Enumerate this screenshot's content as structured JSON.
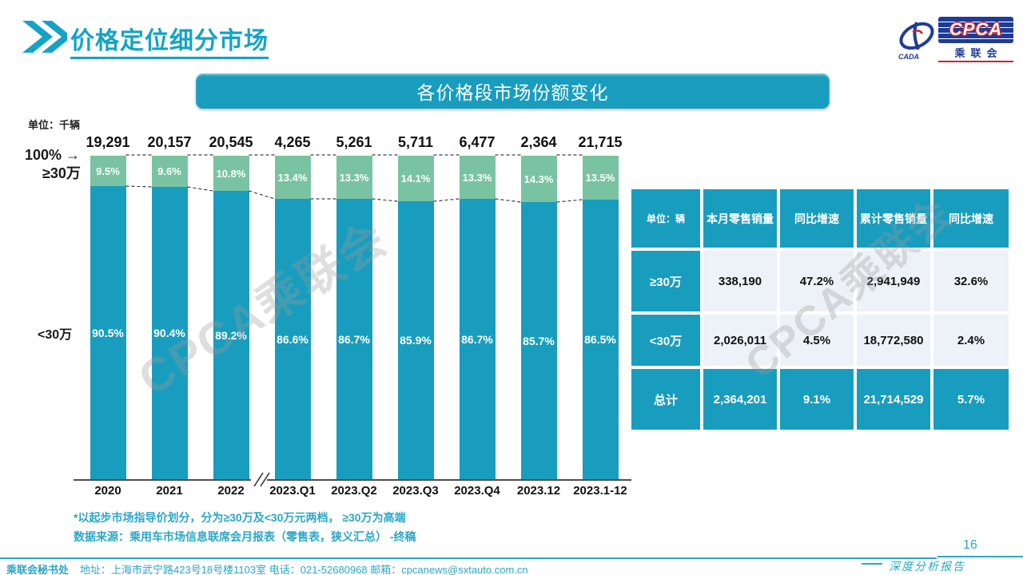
{
  "slide": {
    "title": "价格定位细分市场",
    "page_number": "16",
    "report_label": "深度分析报告",
    "watermark": "CPCA乘联会"
  },
  "logo": {
    "cpca": "CPCA",
    "cpca_cn": "乘联会",
    "cada": "CADA"
  },
  "chart": {
    "unit_label": "单位：千辆",
    "y_top_label": "100%",
    "arrow": "→"
  },
  "chart_data": [
    {
      "type": "bar",
      "stacked": true,
      "title": "各价格段市场份额变化",
      "unit": "千辆",
      "categories": [
        "2020",
        "2021",
        "2022",
        "2023.Q1",
        "2023.Q2",
        "2023.Q3",
        "2023.Q4",
        "2023.12",
        "2023.1-12"
      ],
      "totals": [
        19291,
        20157,
        20545,
        4265,
        5261,
        5711,
        6477,
        2364,
        21715
      ],
      "series": [
        {
          "name": "≥30万",
          "color": "#79c3a2",
          "values": [
            9.5,
            9.6,
            10.8,
            13.4,
            13.3,
            14.1,
            13.3,
            14.3,
            13.5
          ]
        },
        {
          "name": "<30万",
          "color": "#199dbe",
          "values": [
            90.5,
            90.4,
            89.2,
            86.6,
            86.7,
            85.9,
            86.7,
            85.7,
            86.5
          ]
        }
      ],
      "ylim": [
        0,
        100
      ],
      "value_format": "percent",
      "axis_break_after": "2022",
      "legend_position": "left-axis"
    },
    {
      "type": "table",
      "columns": [
        "单位：辆",
        "本月零售销量",
        "同比增速",
        "累计零售销量",
        "同比增速"
      ],
      "rows": [
        [
          "≥30万",
          "338,190",
          "47.2%",
          "2,941,949",
          "32.6%"
        ],
        [
          "<30万",
          "2,026,011",
          "4.5%",
          "18,772,580",
          "2.4%"
        ],
        [
          "总计",
          "2,364,201",
          "9.1%",
          "21,714,529",
          "5.7%"
        ]
      ]
    }
  ],
  "notes": [
    "*以起步市场指导价划分，分为≥30万及<30万元两档， ≥30万为高端",
    "数据来源：乘用车市场信息联席会月报表（零售表，狭义汇总） -终稿"
  ],
  "footer": {
    "org": "乘联会秘书处",
    "contact": "地址：上海市武宁路423号18号楼1103室 电话：021-52680968  邮箱：cpcanews@sxtauto.com.cn"
  },
  "colors": {
    "teal": "#199dbe",
    "green": "#79c3a2",
    "title_teal": "#14a3c6",
    "footer_teal": "#2aa7c9",
    "table_cell_bg": "#edf2f8",
    "logo_navy": "#1e3c96",
    "logo_red": "#cc2229"
  }
}
